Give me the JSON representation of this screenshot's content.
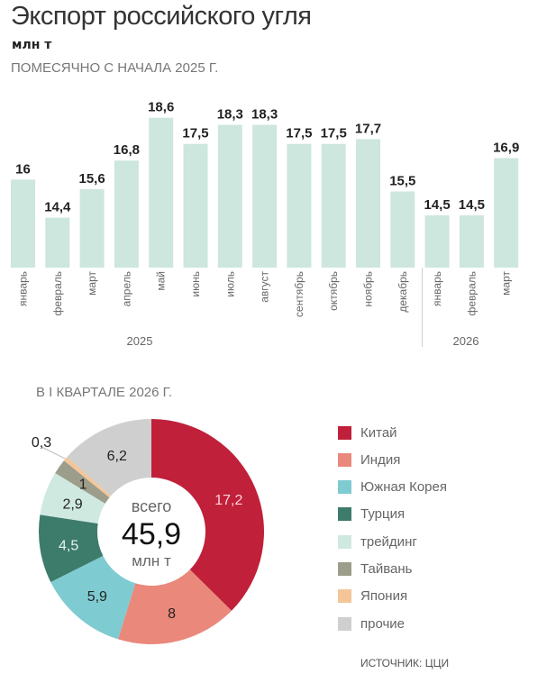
{
  "title": "Экспорт российского угля",
  "unit": "млн т",
  "subtitle": "ПОМЕСЯЧНО С НАЧАЛА 2025 Г.",
  "chart_data": [
    {
      "type": "bar",
      "categories": [
        "январь",
        "февраль",
        "март",
        "апрель",
        "май",
        "июнь",
        "июль",
        "август",
        "сентябрь",
        "октябрь",
        "ноябрь",
        "декабрь",
        "январь",
        "февраль",
        "март"
      ],
      "years": [
        {
          "label": "2025",
          "count": 12
        },
        {
          "label": "2026",
          "count": 3
        }
      ],
      "values": [
        16,
        14.4,
        15.6,
        16.8,
        18.6,
        17.5,
        18.3,
        18.3,
        17.5,
        17.5,
        17.7,
        15.5,
        14.5,
        14.5,
        16.9
      ],
      "value_labels": [
        "16",
        "14,4",
        "15,6",
        "16,8",
        "18,6",
        "17,5",
        "18,3",
        "18,3",
        "17,5",
        "17,5",
        "17,7",
        "15,5",
        "14,5",
        "14,5",
        "16,9"
      ],
      "color": "#cde6de",
      "ylim": [
        12.3,
        18.6
      ],
      "grid": false
    },
    {
      "type": "pie",
      "title": "В I КВАРТАЛЕ 2026 Г.",
      "center_label": "всего",
      "center_value": "45,9",
      "center_unit": "млн т",
      "slices": [
        {
          "name": "Китай",
          "value": 17.2,
          "label": "17,2",
          "color": "#c0203a"
        },
        {
          "name": "Индия",
          "value": 8,
          "label": "8",
          "color": "#ea887b"
        },
        {
          "name": "Южная Корея",
          "value": 5.9,
          "label": "5,9",
          "color": "#7fcbd2"
        },
        {
          "name": "Турция",
          "value": 4.5,
          "label": "4,5",
          "color": "#3d7b6b"
        },
        {
          "name": "трейдинг",
          "value": 2.9,
          "label": "2,9",
          "color": "#cfe9e1"
        },
        {
          "name": "Тайвань",
          "value": 1,
          "label": "1",
          "color": "#9d9d8b"
        },
        {
          "name": "Япония",
          "value": 0.3,
          "label": "0,3",
          "color": "#f4c697"
        },
        {
          "name": "прочие",
          "value": 6.2,
          "label": "6,2",
          "color": "#cfcfcf"
        }
      ]
    }
  ],
  "source": "ИСТОЧНИК: ЦЦИ"
}
